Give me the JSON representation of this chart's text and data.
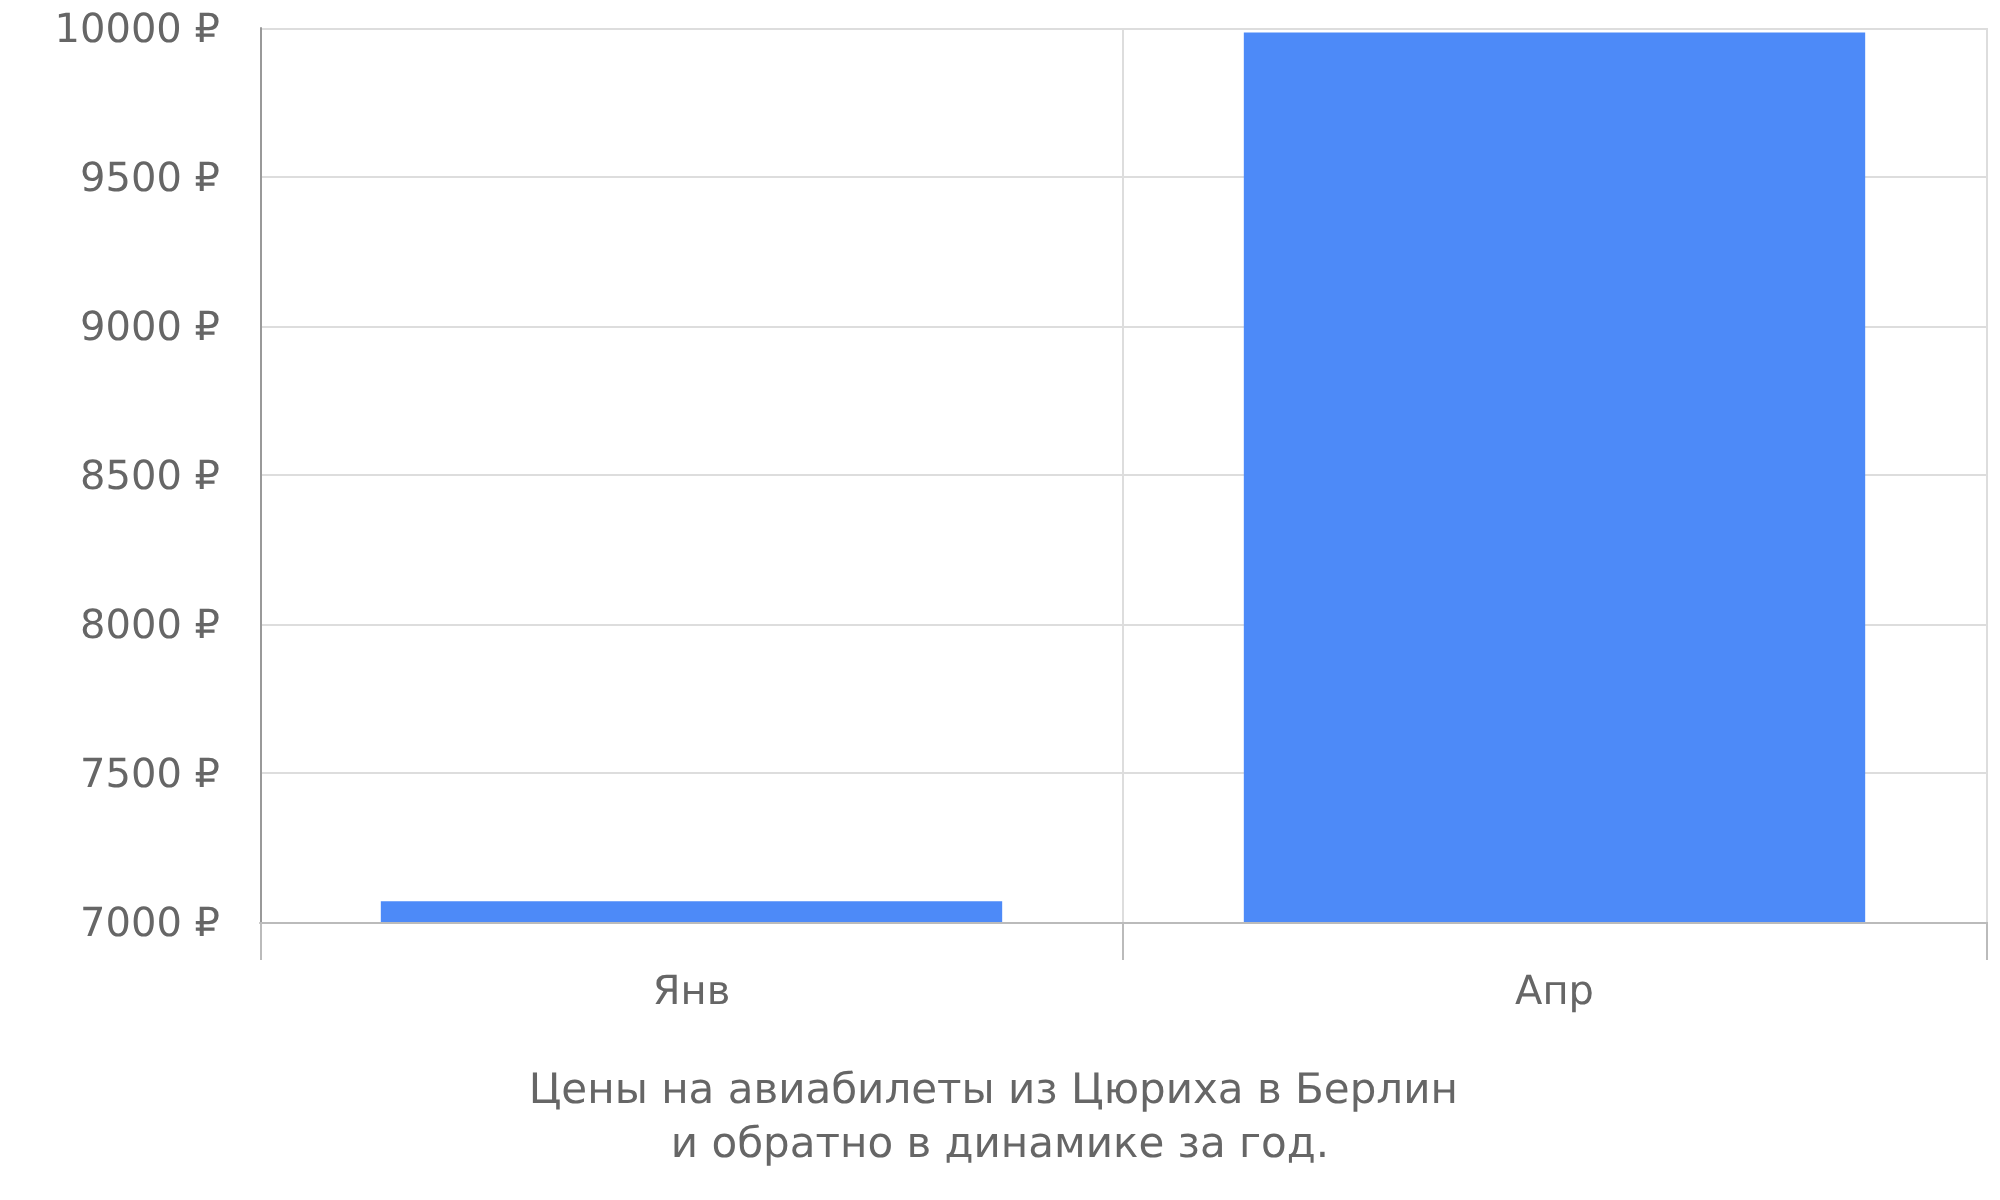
{
  "chart_data": {
    "type": "bar",
    "title": "Цены на авиабилеты из Цюриха в Берлин и обратно в динамике за год.",
    "categories": [
      "Янв",
      "Апр"
    ],
    "values": [
      7070,
      9985
    ],
    "color": "#4d8af8",
    "ylim": [
      7000,
      10000
    ],
    "yticks": [
      {
        "value": 7000,
        "label": "7000 ₽"
      },
      {
        "value": 7500,
        "label": "7500 ₽"
      },
      {
        "value": 8000,
        "label": "8000 ₽"
      },
      {
        "value": 8500,
        "label": "8500 ₽"
      },
      {
        "value": 9000,
        "label": "9000 ₽"
      },
      {
        "value": 9500,
        "label": "9500 ₽"
      },
      {
        "value": 10000,
        "label": "10000 ₽"
      }
    ],
    "grid": true
  }
}
